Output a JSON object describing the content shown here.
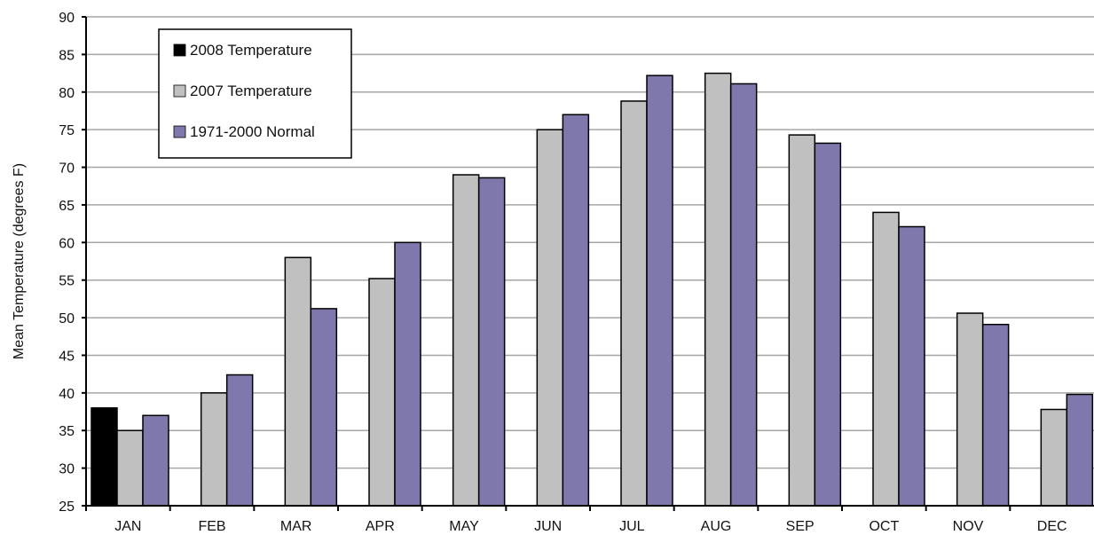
{
  "chart_data": {
    "type": "bar",
    "title": "",
    "xlabel": "",
    "ylabel": "Mean Temperature (degrees F)",
    "ylim": [
      25,
      90
    ],
    "yticks": [
      25,
      30,
      35,
      40,
      45,
      50,
      55,
      60,
      65,
      70,
      75,
      80,
      85,
      90
    ],
    "grid": true,
    "legend_position": "top-left",
    "categories": [
      "JAN",
      "FEB",
      "MAR",
      "APR",
      "MAY",
      "JUN",
      "JUL",
      "AUG",
      "SEP",
      "OCT",
      "NOV",
      "DEC"
    ],
    "series": [
      {
        "name": "2008 Temperature",
        "color": "#000000",
        "values": [
          38,
          null,
          null,
          null,
          null,
          null,
          null,
          null,
          null,
          null,
          null,
          null
        ]
      },
      {
        "name": "2007 Temperature",
        "color": "#c0c0c0",
        "values": [
          35,
          40,
          58,
          55.2,
          69,
          75,
          78.8,
          82.5,
          74.3,
          64,
          50.6,
          37.8
        ]
      },
      {
        "name": "1971-2000 Normal",
        "color": "#7f78ad",
        "values": [
          37,
          42.4,
          51.2,
          60,
          68.6,
          77,
          82.2,
          81.1,
          73.2,
          62.1,
          49.1,
          39.8
        ]
      }
    ]
  }
}
